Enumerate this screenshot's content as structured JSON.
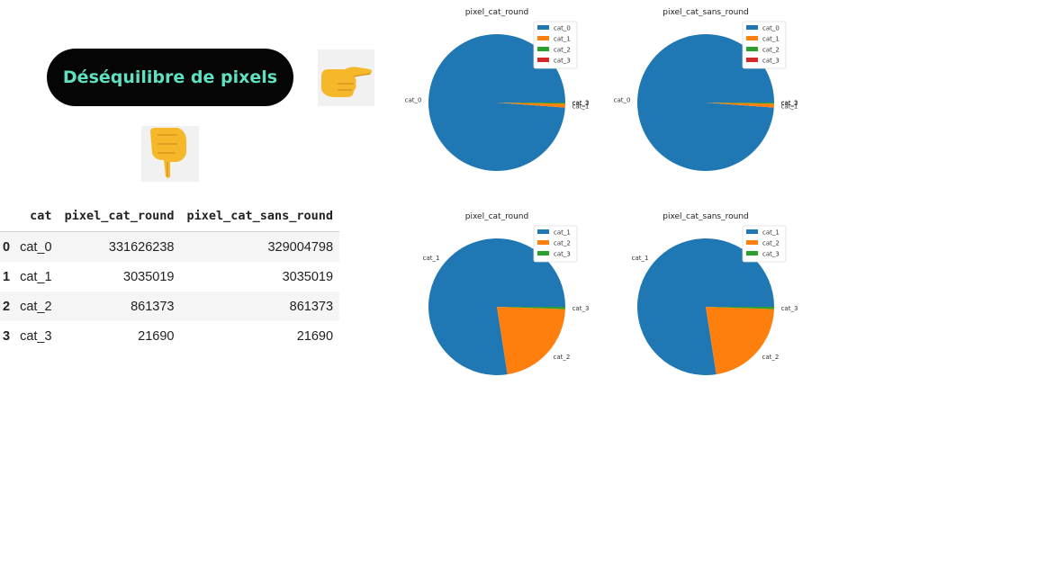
{
  "header": {
    "title": "Déséquilibre de pixels",
    "emoji_right": "👉",
    "emoji_down": "👇"
  },
  "table": {
    "columns": [
      "cat",
      "pixel_cat_round",
      "pixel_cat_sans_round"
    ],
    "rows": [
      {
        "index": "0",
        "cat": "cat_0",
        "pixel_cat_round": "331626238",
        "pixel_cat_sans_round": "329004798"
      },
      {
        "index": "1",
        "cat": "cat_1",
        "pixel_cat_round": "3035019",
        "pixel_cat_sans_round": "3035019"
      },
      {
        "index": "2",
        "cat": "cat_2",
        "pixel_cat_round": "861373",
        "pixel_cat_sans_round": "861373"
      },
      {
        "index": "3",
        "cat": "cat_3",
        "pixel_cat_round": "21690",
        "pixel_cat_sans_round": "21690"
      }
    ]
  },
  "chart_data": [
    {
      "type": "pie",
      "title": "pixel_cat_round",
      "labels": [
        "cat_0",
        "cat_1",
        "cat_2",
        "cat_3"
      ],
      "values": [
        331626238,
        3035019,
        861373,
        21690
      ],
      "colors": [
        "#1f77b4",
        "#ff7f0e",
        "#2ca02c",
        "#d62728"
      ],
      "legend": "top-right"
    },
    {
      "type": "pie",
      "title": "pixel_cat_sans_round",
      "labels": [
        "cat_0",
        "cat_1",
        "cat_2",
        "cat_3"
      ],
      "values": [
        329004798,
        3035019,
        861373,
        21690
      ],
      "colors": [
        "#1f77b4",
        "#ff7f0e",
        "#2ca02c",
        "#d62728"
      ],
      "legend": "top-right"
    },
    {
      "type": "pie",
      "title": "pixel_cat_round",
      "labels": [
        "cat_1",
        "cat_2",
        "cat_3"
      ],
      "values": [
        3035019,
        861373,
        21690
      ],
      "colors": [
        "#1f77b4",
        "#ff7f0e",
        "#2ca02c"
      ],
      "legend": "top-right"
    },
    {
      "type": "pie",
      "title": "pixel_cat_sans_round",
      "labels": [
        "cat_1",
        "cat_2",
        "cat_3"
      ],
      "values": [
        3035019,
        861373,
        21690
      ],
      "colors": [
        "#1f77b4",
        "#ff7f0e",
        "#2ca02c"
      ],
      "legend": "top-right"
    }
  ]
}
